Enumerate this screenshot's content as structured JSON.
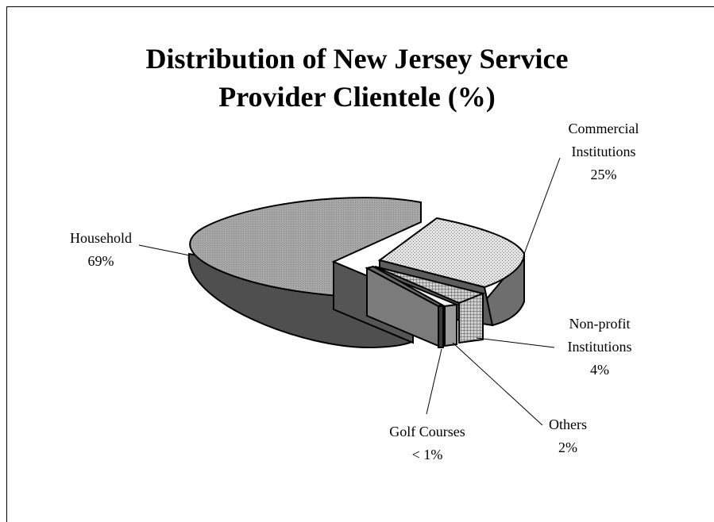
{
  "chart_data": {
    "type": "pie",
    "title_lines": [
      "Distribution of New Jersey Service",
      "Provider Clientele (%)"
    ],
    "slices": [
      {
        "name": "Household",
        "value_label": "69%",
        "value": 69,
        "fill": "#9a9a9a",
        "side": "#4a4a4a"
      },
      {
        "name": "Commercial Institutions",
        "name_lines": [
          "Commercial",
          "Institutions"
        ],
        "value_label": "25%",
        "value": 25,
        "fill": "#d6d6d6",
        "side": "#6a6a6a"
      },
      {
        "name": "Non-profit Institutions",
        "name_lines": [
          "Non-profit",
          "Institutions"
        ],
        "value_label": "4%",
        "value": 4,
        "fill": "#8c8c8c",
        "side": "#5a5a5a"
      },
      {
        "name": "Others",
        "value_label": "2%",
        "value": 2,
        "fill": "#f0f0f0",
        "side": "#b0b0b0"
      },
      {
        "name": "Golf Courses",
        "value_label": "< 1%",
        "value": 0.5,
        "fill": "#7a7a7a",
        "side": "#3a3a3a"
      }
    ],
    "style": "3d-exploded-pie",
    "legend": "none"
  }
}
